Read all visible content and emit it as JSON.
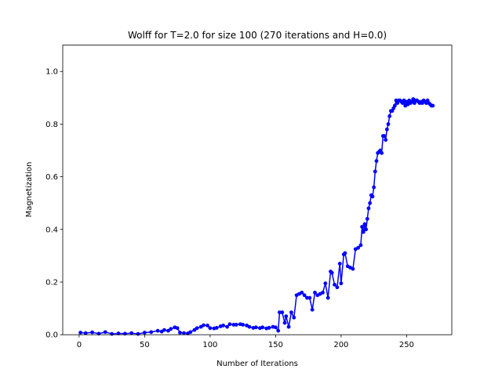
{
  "chart_data": {
    "type": "line",
    "title": "Wolff for T=2.0 for size 100 (270 iterations and H=0.0)",
    "xlabel": "Number of Iterations",
    "ylabel": "Magnetization",
    "xlim": [
      -12.5,
      284.5
    ],
    "ylim": [
      0,
      1.1
    ],
    "xticks": [
      0,
      50,
      100,
      150,
      200,
      250
    ],
    "yticks": [
      0.0,
      0.2,
      0.4,
      0.6,
      0.8,
      1.0
    ],
    "xtick_labels": [
      "0",
      "50",
      "100",
      "150",
      "200",
      "250"
    ],
    "ytick_labels": [
      "0.0",
      "0.2",
      "0.4",
      "0.6",
      "0.8",
      "1.0"
    ],
    "grid": false,
    "legend": null,
    "series": [
      {
        "color": "#0000ff",
        "marker": "circle",
        "x": [
          1,
          5,
          10,
          15,
          20,
          25,
          30,
          35,
          40,
          45,
          50,
          55,
          60,
          63,
          65,
          68,
          70,
          73,
          75,
          77,
          80,
          83,
          85,
          88,
          90,
          93,
          95,
          98,
          100,
          103,
          105,
          108,
          110,
          113,
          115,
          118,
          120,
          123,
          125,
          128,
          130,
          133,
          135,
          138,
          140,
          143,
          145,
          148,
          150,
          152,
          153,
          155,
          157,
          158,
          160,
          162,
          164,
          166,
          168,
          170,
          172,
          174,
          176,
          178,
          180,
          182,
          184,
          186,
          188,
          190,
          192,
          193,
          195,
          197,
          199,
          200,
          202,
          203,
          205,
          207,
          209,
          211,
          213,
          215,
          216,
          217,
          218,
          219,
          220,
          221,
          222,
          223,
          224,
          225,
          226,
          227,
          228,
          229,
          230,
          231,
          232,
          233,
          234,
          235,
          236,
          237,
          238,
          239,
          240,
          241,
          242,
          243,
          244,
          245,
          246,
          247,
          248,
          249,
          250,
          251,
          252,
          253,
          254,
          255,
          256,
          257,
          258,
          259,
          260,
          261,
          262,
          263,
          264,
          265,
          266,
          267,
          268,
          269,
          270
        ],
        "y": [
          0.008,
          0.006,
          0.009,
          0.004,
          0.01,
          0.003,
          0.005,
          0.004,
          0.006,
          0.003,
          0.008,
          0.01,
          0.015,
          0.012,
          0.018,
          0.015,
          0.022,
          0.028,
          0.025,
          0.008,
          0.006,
          0.005,
          0.01,
          0.018,
          0.025,
          0.03,
          0.036,
          0.035,
          0.025,
          0.024,
          0.026,
          0.032,
          0.035,
          0.03,
          0.04,
          0.038,
          0.038,
          0.04,
          0.038,
          0.035,
          0.03,
          0.026,
          0.028,
          0.025,
          0.028,
          0.024,
          0.026,
          0.03,
          0.028,
          0.015,
          0.085,
          0.085,
          0.045,
          0.07,
          0.03,
          0.085,
          0.065,
          0.15,
          0.155,
          0.16,
          0.15,
          0.14,
          0.14,
          0.095,
          0.16,
          0.15,
          0.155,
          0.16,
          0.195,
          0.14,
          0.24,
          0.235,
          0.19,
          0.18,
          0.27,
          0.195,
          0.305,
          0.31,
          0.26,
          0.255,
          0.25,
          0.325,
          0.33,
          0.34,
          0.41,
          0.39,
          0.42,
          0.4,
          0.44,
          0.48,
          0.5,
          0.53,
          0.525,
          0.56,
          0.62,
          0.66,
          0.69,
          0.695,
          0.7,
          0.69,
          0.755,
          0.755,
          0.74,
          0.78,
          0.8,
          0.83,
          0.85,
          0.85,
          0.86,
          0.87,
          0.89,
          0.88,
          0.89,
          0.89,
          0.885,
          0.88,
          0.89,
          0.87,
          0.885,
          0.875,
          0.89,
          0.88,
          0.885,
          0.895,
          0.88,
          0.89,
          0.89,
          0.885,
          0.88,
          0.885,
          0.88,
          0.89,
          0.885,
          0.88,
          0.89,
          0.88,
          0.875,
          0.87,
          0.87
        ]
      }
    ]
  }
}
